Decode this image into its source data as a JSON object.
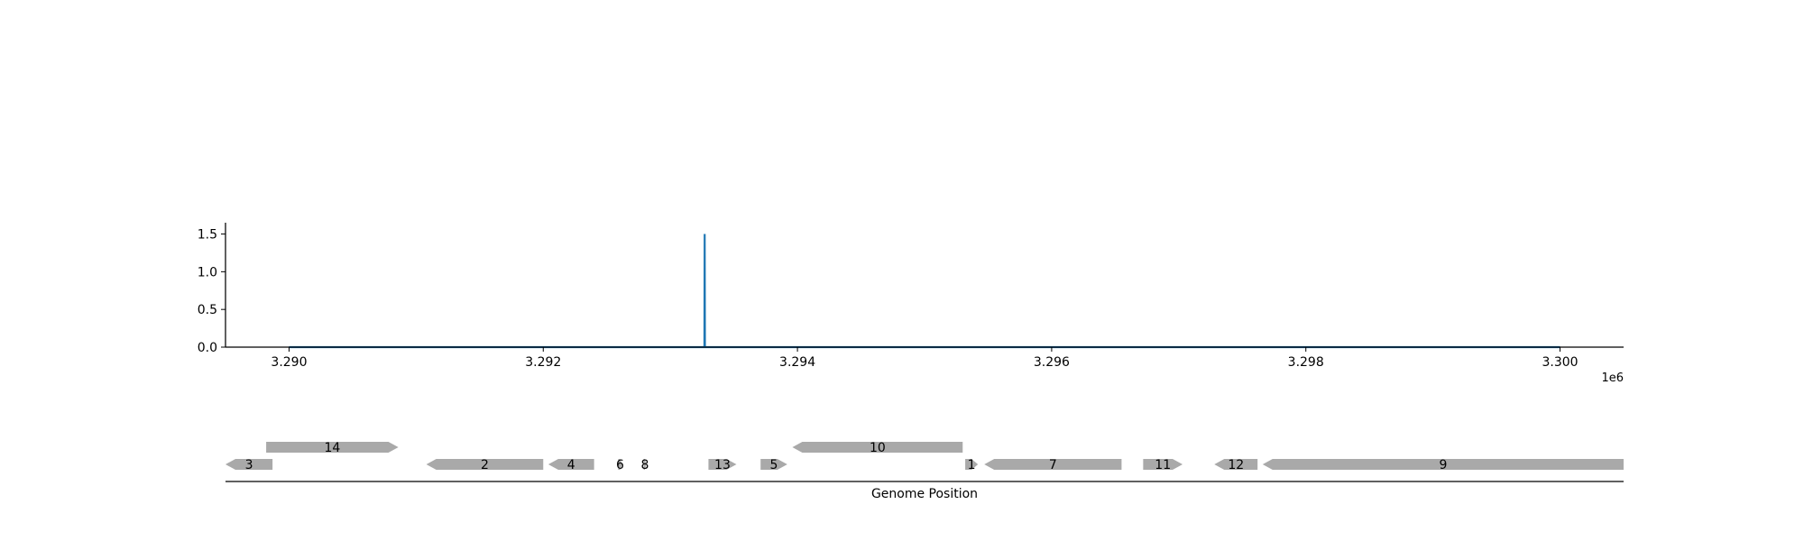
{
  "chart_data": [
    {
      "type": "line",
      "title": "",
      "xlabel": "",
      "ylabel": "",
      "x_offset_label": "1e6",
      "xlim": [
        3289500,
        3300500
      ],
      "ylim": [
        0,
        1.65
      ],
      "x_ticks": [
        3290000,
        3292000,
        3294000,
        3296000,
        3298000,
        3300000
      ],
      "x_tick_labels": [
        "3.290",
        "3.292",
        "3.294",
        "3.296",
        "3.298",
        "3.300"
      ],
      "y_ticks": [
        0,
        0.5,
        1.0,
        1.5
      ],
      "y_tick_labels": [
        "0.0",
        "0.5",
        "1.0",
        "1.5"
      ],
      "grid": false,
      "series": [
        {
          "color": "#1f77b4",
          "x": [
            3290000,
            3293268,
            3293270,
            3293272,
            3300000
          ],
          "y": [
            0,
            0,
            1.5,
            0,
            0
          ]
        }
      ]
    },
    {
      "type": "gene-track",
      "xlabel": "Genome Position",
      "xlim": [
        3289500,
        3300500
      ],
      "color": "#a9a9a9",
      "genes": [
        {
          "label": "3",
          "start": 3289500,
          "end": 3289870,
          "strand": -1,
          "row": 0
        },
        {
          "label": "14",
          "start": 3289820,
          "end": 3290860,
          "strand": 1,
          "row": 1
        },
        {
          "label": "2",
          "start": 3291080,
          "end": 3292000,
          "strand": -1,
          "row": 0
        },
        {
          "label": "4",
          "start": 3292040,
          "end": 3292400,
          "strand": -1,
          "row": 0
        },
        {
          "label": "6",
          "start": 3292590,
          "end": 3292620,
          "strand": 1,
          "row": 0
        },
        {
          "label": "8",
          "start": 3292790,
          "end": 3292810,
          "strand": 1,
          "row": 0
        },
        {
          "label": "13",
          "start": 3293300,
          "end": 3293520,
          "strand": 1,
          "row": 0
        },
        {
          "label": "5",
          "start": 3293710,
          "end": 3293920,
          "strand": 1,
          "row": 0
        },
        {
          "label": "10",
          "start": 3293960,
          "end": 3295300,
          "strand": -1,
          "row": 1
        },
        {
          "label": "1",
          "start": 3295320,
          "end": 3295420,
          "strand": 1,
          "row": 0
        },
        {
          "label": "7",
          "start": 3295470,
          "end": 3296550,
          "strand": -1,
          "row": 0
        },
        {
          "label": "11",
          "start": 3296720,
          "end": 3297030,
          "strand": 1,
          "row": 0
        },
        {
          "label": "12",
          "start": 3297280,
          "end": 3297620,
          "strand": -1,
          "row": 0
        },
        {
          "label": "9",
          "start": 3297660,
          "end": 3300500,
          "strand": -1,
          "row": 0
        }
      ]
    }
  ]
}
